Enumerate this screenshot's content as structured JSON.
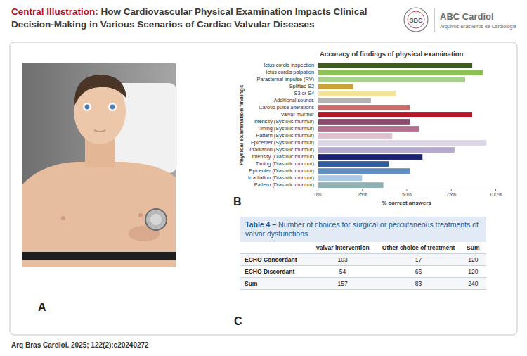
{
  "header": {
    "label": "Central Illustration:",
    "title": "How Cardiovascular Physical Examination Impacts Clinical Decision-Making in Various Scenarios of Cardiac Valvular Diseases"
  },
  "logo": {
    "abbr": "SBC",
    "brand": "ABC Cardiol",
    "subtitle": "Arquivos Brasileiros de Cardiologia"
  },
  "panels": {
    "a": "A",
    "b": "B",
    "c": "C"
  },
  "chart_data": {
    "type": "bar",
    "orientation": "horizontal",
    "title": "Accuracy of findings of physical examination",
    "x_label": "% correct answers",
    "y_label": "Physical examination findings",
    "categories": [
      "Ictus cordis inspection",
      "Ictus cordis palpation",
      "Parasternal impulse (RV)",
      "Splitted S2",
      "S3 or S4",
      "Additional sounds",
      "Carotid pulse alterations",
      "Valvar murmur",
      "Intensity (Systolic murmur)",
      "Timing (Systolic murmur)",
      "Pattern (Systolic murmur)",
      "Epicenter (Systolic murmur)",
      "Irradiation (Systolic murmur)",
      "Intensity (Diastolic murmur)",
      "Timing (Diastolic murmur)",
      "Epicenter (Diastolic murmur)",
      "Irradiation (Diastolic murmur)",
      "Pattern (Diastolic murmur)"
    ],
    "values": [
      87,
      93,
      83,
      20,
      44,
      30,
      52,
      87,
      52,
      57,
      42,
      95,
      77,
      59,
      40,
      52,
      25,
      37
    ],
    "colors": [
      "#3e5b20",
      "#8dc153",
      "#a9d18e",
      "#c9a235",
      "#f4e39a",
      "#b3b3b3",
      "#c96b6b",
      "#b5162c",
      "#8b4b6f",
      "#b37190",
      "#dfc1d1",
      "#ddd6e8",
      "#b4a8cd",
      "#1b216f",
      "#2f5b9f",
      "#6090c3",
      "#aac9e7",
      "#90b1b3"
    ],
    "xlim": [
      0,
      100
    ],
    "xticks": [
      {
        "value": 0,
        "label": "0%"
      },
      {
        "value": 25,
        "label": "25%"
      },
      {
        "value": 50,
        "label": "50%"
      },
      {
        "value": 75,
        "label": "75%"
      },
      {
        "value": 100,
        "label": "100%"
      }
    ]
  },
  "table": {
    "label": "Table 4 –",
    "title": "Number of choices for surgical or percutaneous treatments of valvar dysfunctions",
    "columns": [
      "Valvar intervention",
      "Other choice of treatment",
      "Sum"
    ],
    "rows": [
      {
        "label": "ECHO Concordant",
        "values": [
          103,
          17,
          120
        ]
      },
      {
        "label": "ECHO Discordant",
        "values": [
          54,
          66,
          120
        ]
      },
      {
        "label": "Sum",
        "values": [
          157,
          83,
          240
        ]
      }
    ]
  },
  "footer": "Arq Bras Cardiol. 2025; 122(2):e20240272"
}
